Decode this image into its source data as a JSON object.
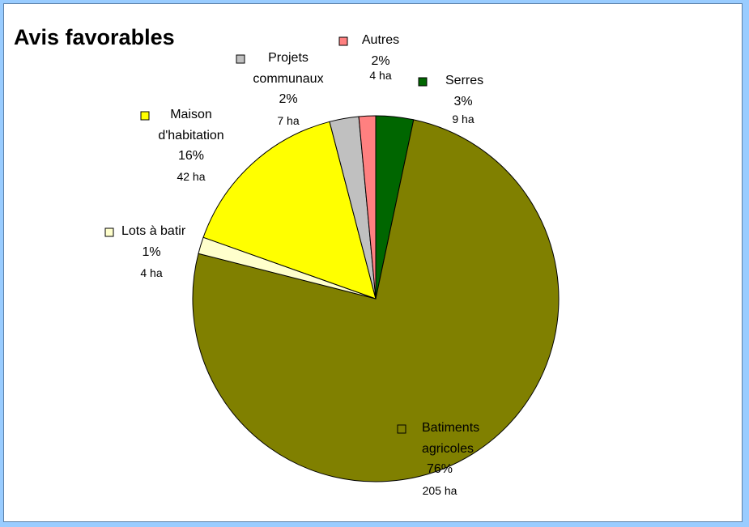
{
  "chart_data": {
    "type": "pie",
    "title": "Avis favorables",
    "slices": [
      {
        "name": "Serres",
        "lines": [
          "Serres"
        ],
        "percent": "3%",
        "area": "9 ha",
        "value": 9,
        "color": "#006600"
      },
      {
        "name": "Batiments agricoles",
        "lines": [
          "Batiments",
          "agricoles"
        ],
        "percent": "76%",
        "area": "205 ha",
        "value": 205,
        "color": "#808000"
      },
      {
        "name": "Lots à batir",
        "lines": [
          "Lots à batir"
        ],
        "percent": "1%",
        "area": "4 ha",
        "value": 4,
        "color": "#ffffcc"
      },
      {
        "name": "Maison d'habitation",
        "lines": [
          "Maison",
          "d'habitation"
        ],
        "percent": "16%",
        "area": "42 ha",
        "value": 42,
        "color": "#ffff00"
      },
      {
        "name": "Projets communaux",
        "lines": [
          "Projets",
          "communaux"
        ],
        "percent": "2%",
        "area": "7 ha",
        "value": 7,
        "color": "#c0c0c0"
      },
      {
        "name": "Autres",
        "lines": [
          "Autres"
        ],
        "percent": "2%",
        "area": "4 ha",
        "value": 4,
        "color": "#ff8080"
      }
    ],
    "legend": "none",
    "data_labels": "outside"
  }
}
